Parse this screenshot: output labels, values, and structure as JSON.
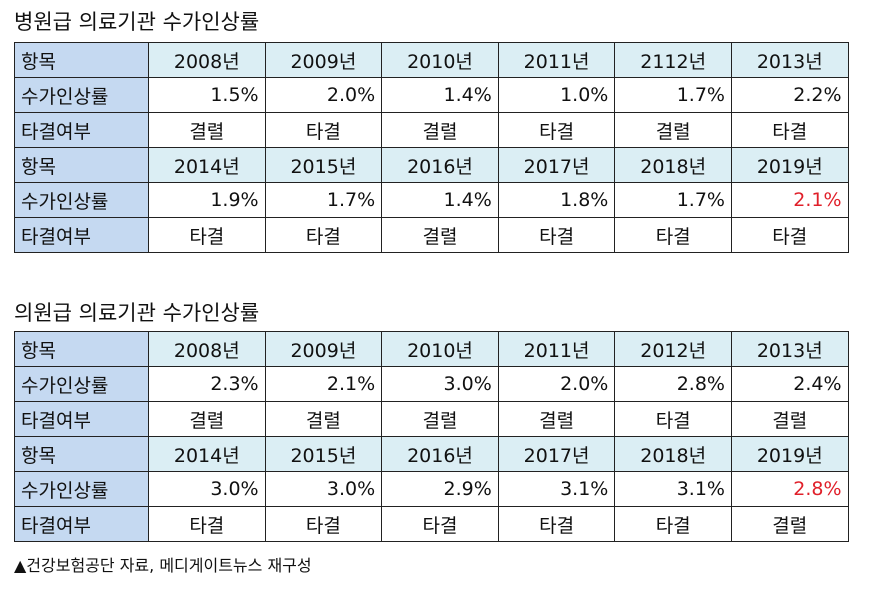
{
  "colors": {
    "label_background": "#c5d9f1",
    "header_background": "#dbeef4",
    "highlight_text": "#e0202a",
    "border": "#222222"
  },
  "sections": [
    {
      "title": "병원급 의료기관 수가인상률",
      "label_item": "항목",
      "label_rate": "수가인상률",
      "label_result": "타결여부",
      "blocks": [
        {
          "years": [
            "2008년",
            "2009년",
            "2010년",
            "2011년",
            "2112년",
            "2013년"
          ],
          "rates": [
            "1.5%",
            "2.0%",
            "1.4%",
            "1.0%",
            "1.7%",
            "2.2%"
          ],
          "results": [
            "결렬",
            "타결",
            "결렬",
            "타결",
            "결렬",
            "타결"
          ]
        },
        {
          "years": [
            "2014년",
            "2015년",
            "2016년",
            "2017년",
            "2018년",
            "2019년"
          ],
          "rates": [
            "1.9%",
            "1.7%",
            "1.4%",
            "1.8%",
            "1.7%",
            "2.1%"
          ],
          "results": [
            "타결",
            "타결",
            "결렬",
            "타결",
            "타결",
            "타결"
          ]
        }
      ]
    },
    {
      "title": "의원급 의료기관 수가인상률",
      "label_item": "항목",
      "label_rate": "수가인상률",
      "label_result": "타결여부",
      "blocks": [
        {
          "years": [
            "2008년",
            "2009년",
            "2010년",
            "2011년",
            "2012년",
            "2013년"
          ],
          "rates": [
            "2.3%",
            "2.1%",
            "3.0%",
            "2.0%",
            "2.8%",
            "2.4%"
          ],
          "results": [
            "결렬",
            "결렬",
            "결렬",
            "결렬",
            "타결",
            "결렬"
          ]
        },
        {
          "years": [
            "2014년",
            "2015년",
            "2016년",
            "2017년",
            "2018년",
            "2019년"
          ],
          "rates": [
            "3.0%",
            "3.0%",
            "2.9%",
            "3.1%",
            "3.1%",
            "2.8%"
          ],
          "results": [
            "타결",
            "타결",
            "타결",
            "타결",
            "타결",
            "결렬"
          ]
        }
      ]
    }
  ],
  "source_note": "▲건강보험공단 자료, 메디게이트뉴스 재구성"
}
